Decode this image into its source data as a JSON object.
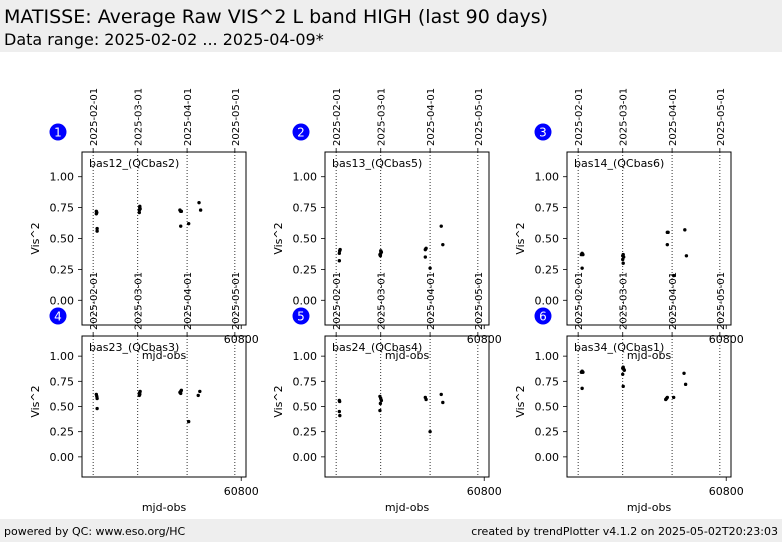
{
  "header": {
    "title": "MATISSE: Average Raw VIS^2 L band HIGH (last 90 days)",
    "subtitle": "Data range: 2025-02-02 ... 2025-04-09*"
  },
  "footer": {
    "left": "powered by QC: www.eso.org/HC",
    "right": "created by trendPlotter v4.1.2 on 2025-05-02T20:23:03"
  },
  "colors": {
    "panel_badge": "#0000ff",
    "points": "#000000",
    "header_band": "#eeeeee"
  },
  "chart_data": [
    {
      "type": "scatter",
      "panel_number": "1",
      "label": "bas12_(QCbas2)",
      "xlabel": "mjd-obs",
      "ylabel": "Vis^2",
      "xlim": [
        60700,
        60803
      ],
      "ylim": [
        -0.2,
        1.2
      ],
      "yticks": [
        0.0,
        0.25,
        0.5,
        0.75,
        1.0
      ],
      "ytick_labels": [
        "0.00",
        "0.25",
        "0.50",
        "0.75",
        "1.00"
      ],
      "xticks": [
        60800
      ],
      "xtick_labels": [
        "60800"
      ],
      "date_lines": [
        60707,
        60735,
        60766,
        60796
      ],
      "date_labels": [
        "2025-02-01",
        "2025-03-01",
        "2025-04-01",
        "2025-05-01"
      ],
      "points": [
        [
          60709.0,
          0.7
        ],
        [
          60709.0,
          0.72
        ],
        [
          60709.3,
          0.71
        ],
        [
          60709.5,
          0.56
        ],
        [
          60709.5,
          0.58
        ],
        [
          60736.0,
          0.71
        ],
        [
          60736.0,
          0.73
        ],
        [
          60736.3,
          0.75
        ],
        [
          60736.3,
          0.76
        ],
        [
          60736.5,
          0.74
        ],
        [
          60761.5,
          0.73
        ],
        [
          60762.0,
          0.72
        ],
        [
          60762.4,
          0.72
        ],
        [
          60762.0,
          0.6
        ],
        [
          60767.0,
          0.62
        ],
        [
          60773.5,
          0.79
        ],
        [
          60774.5,
          0.73
        ]
      ]
    },
    {
      "type": "scatter",
      "panel_number": "2",
      "label": "bas13_(QCbas5)",
      "xlabel": "mjd-obs",
      "ylabel": "Vis^2",
      "xlim": [
        60700,
        60803
      ],
      "ylim": [
        -0.2,
        1.2
      ],
      "yticks": [
        0.0,
        0.25,
        0.5,
        0.75,
        1.0
      ],
      "ytick_labels": [
        "0.00",
        "0.25",
        "0.50",
        "0.75",
        "1.00"
      ],
      "xticks": [
        60800
      ],
      "xtick_labels": [
        "60800"
      ],
      "date_lines": [
        60707,
        60735,
        60766,
        60796
      ],
      "date_labels": [
        "2025-02-01",
        "2025-03-01",
        "2025-04-01",
        "2025-05-01"
      ],
      "points": [
        [
          60709.0,
          0.38
        ],
        [
          60709.2,
          0.4
        ],
        [
          60709.5,
          0.41
        ],
        [
          60709.0,
          0.32
        ],
        [
          60734.5,
          0.37
        ],
        [
          60735.0,
          0.38
        ],
        [
          60735.4,
          0.39
        ],
        [
          60735.0,
          0.4
        ],
        [
          60734.8,
          0.36
        ],
        [
          60763.0,
          0.41
        ],
        [
          60763.5,
          0.42
        ],
        [
          60763.0,
          0.35
        ],
        [
          60766.0,
          0.26
        ],
        [
          60773.0,
          0.6
        ],
        [
          60774.0,
          0.45
        ]
      ]
    },
    {
      "type": "scatter",
      "panel_number": "3",
      "label": "bas14_(QCbas6)",
      "xlabel": "mjd-obs",
      "ylabel": "Vis^2",
      "xlim": [
        60700,
        60803
      ],
      "ylim": [
        -0.2,
        1.2
      ],
      "yticks": [
        0.0,
        0.25,
        0.5,
        0.75,
        1.0
      ],
      "ytick_labels": [
        "0.00",
        "0.25",
        "0.50",
        "0.75",
        "1.00"
      ],
      "xticks": [
        60800
      ],
      "xtick_labels": [
        "60800"
      ],
      "date_lines": [
        60707,
        60735,
        60766,
        60796
      ],
      "date_labels": [
        "2025-02-01",
        "2025-03-01",
        "2025-04-01",
        "2025-05-01"
      ],
      "points": [
        [
          60709.0,
          0.37
        ],
        [
          60709.5,
          0.38
        ],
        [
          60710.0,
          0.37
        ],
        [
          60709.5,
          0.26
        ],
        [
          60735.0,
          0.36
        ],
        [
          60735.3,
          0.37
        ],
        [
          60735.6,
          0.35
        ],
        [
          60735.0,
          0.33
        ],
        [
          60735.3,
          0.3
        ],
        [
          60763.0,
          0.55
        ],
        [
          60763.5,
          0.55
        ],
        [
          60763.0,
          0.45
        ],
        [
          60767.0,
          0.2
        ],
        [
          60774.0,
          0.57
        ],
        [
          60775.0,
          0.36
        ]
      ]
    },
    {
      "type": "scatter",
      "panel_number": "4",
      "label": "bas23_(QCbas3)",
      "xlabel": "mjd-obs",
      "ylabel": "Vis^2",
      "xlim": [
        60700,
        60803
      ],
      "ylim": [
        -0.2,
        1.2
      ],
      "yticks": [
        0.0,
        0.25,
        0.5,
        0.75,
        1.0
      ],
      "ytick_labels": [
        "0.00",
        "0.25",
        "0.50",
        "0.75",
        "1.00"
      ],
      "xticks": [
        60800
      ],
      "xtick_labels": [
        "60800"
      ],
      "date_lines": [
        60707,
        60735,
        60766,
        60796
      ],
      "date_labels": [
        "2025-02-01",
        "2025-03-01",
        "2025-04-01",
        "2025-05-01"
      ],
      "points": [
        [
          60709.0,
          0.62
        ],
        [
          60709.3,
          0.6
        ],
        [
          60709.5,
          0.58
        ],
        [
          60709.5,
          0.48
        ],
        [
          60736.0,
          0.61
        ],
        [
          60736.0,
          0.63
        ],
        [
          60736.3,
          0.64
        ],
        [
          60736.5,
          0.65
        ],
        [
          60736.3,
          0.62
        ],
        [
          60761.5,
          0.64
        ],
        [
          60762.0,
          0.65
        ],
        [
          60762.4,
          0.66
        ],
        [
          60762.0,
          0.63
        ],
        [
          60767.0,
          0.35
        ],
        [
          60773.0,
          0.61
        ],
        [
          60774.0,
          0.65
        ]
      ]
    },
    {
      "type": "scatter",
      "panel_number": "5",
      "label": "bas24_(QCbas4)",
      "xlabel": "mjd-obs",
      "ylabel": "Vis^2",
      "xlim": [
        60700,
        60803
      ],
      "ylim": [
        -0.2,
        1.2
      ],
      "yticks": [
        0.0,
        0.25,
        0.5,
        0.75,
        1.0
      ],
      "ytick_labels": [
        "0.00",
        "0.25",
        "0.50",
        "0.75",
        "1.00"
      ],
      "xticks": [
        60800
      ],
      "xtick_labels": [
        "60800"
      ],
      "date_lines": [
        60707,
        60735,
        60766,
        60796
      ],
      "date_labels": [
        "2025-02-01",
        "2025-03-01",
        "2025-04-01",
        "2025-05-01"
      ],
      "points": [
        [
          60709.0,
          0.56
        ],
        [
          60709.2,
          0.55
        ],
        [
          60709.0,
          0.45
        ],
        [
          60709.3,
          0.41
        ],
        [
          60734.5,
          0.6
        ],
        [
          60735.0,
          0.58
        ],
        [
          60735.4,
          0.56
        ],
        [
          60734.8,
          0.53
        ],
        [
          60734.5,
          0.46
        ],
        [
          60763.0,
          0.59
        ],
        [
          60763.5,
          0.57
        ],
        [
          60766.0,
          0.25
        ],
        [
          60773.0,
          0.62
        ],
        [
          60774.0,
          0.54
        ]
      ]
    },
    {
      "type": "scatter",
      "panel_number": "6",
      "label": "bas34_(QCbas1)",
      "xlabel": "mjd-obs",
      "ylabel": "Vis^2",
      "xlim": [
        60700,
        60803
      ],
      "ylim": [
        -0.2,
        1.2
      ],
      "yticks": [
        0.0,
        0.25,
        0.5,
        0.75,
        1.0
      ],
      "ytick_labels": [
        "0.00",
        "0.25",
        "0.50",
        "0.75",
        "1.00"
      ],
      "xticks": [
        60800
      ],
      "xtick_labels": [
        "60800"
      ],
      "date_lines": [
        60707,
        60735,
        60766,
        60796
      ],
      "date_labels": [
        "2025-02-01",
        "2025-03-01",
        "2025-04-01",
        "2025-05-01"
      ],
      "points": [
        [
          60709.0,
          0.84
        ],
        [
          60709.5,
          0.85
        ],
        [
          60710.0,
          0.84
        ],
        [
          60709.5,
          0.68
        ],
        [
          60735.0,
          0.88
        ],
        [
          60735.3,
          0.89
        ],
        [
          60735.6,
          0.87
        ],
        [
          60735.0,
          0.82
        ],
        [
          60735.3,
          0.7
        ],
        [
          60736.0,
          0.86
        ],
        [
          60762.0,
          0.57
        ],
        [
          60762.5,
          0.58
        ],
        [
          60763.0,
          0.59
        ],
        [
          60767.0,
          0.59
        ],
        [
          60773.5,
          0.83
        ],
        [
          60774.5,
          0.72
        ]
      ]
    }
  ]
}
